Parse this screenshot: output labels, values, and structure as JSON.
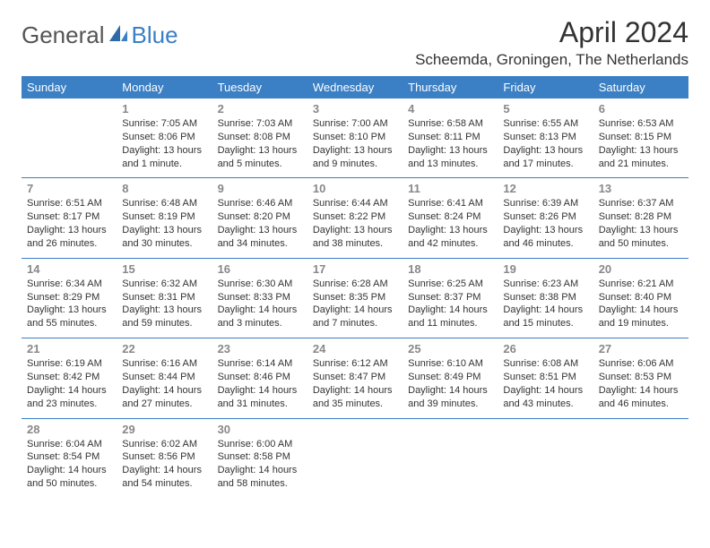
{
  "logo": {
    "text1": "General",
    "text2": "Blue"
  },
  "title": "April 2024",
  "location": "Scheemda, Groningen, The Netherlands",
  "colors": {
    "accent": "#3b7fc4",
    "text": "#333333",
    "daynum": "#888888",
    "bg": "#ffffff"
  },
  "weekdays": [
    "Sunday",
    "Monday",
    "Tuesday",
    "Wednesday",
    "Thursday",
    "Friday",
    "Saturday"
  ],
  "weeks": [
    [
      null,
      {
        "d": "1",
        "sr": "Sunrise: 7:05 AM",
        "ss": "Sunset: 8:06 PM",
        "dl1": "Daylight: 13 hours",
        "dl2": "and 1 minute."
      },
      {
        "d": "2",
        "sr": "Sunrise: 7:03 AM",
        "ss": "Sunset: 8:08 PM",
        "dl1": "Daylight: 13 hours",
        "dl2": "and 5 minutes."
      },
      {
        "d": "3",
        "sr": "Sunrise: 7:00 AM",
        "ss": "Sunset: 8:10 PM",
        "dl1": "Daylight: 13 hours",
        "dl2": "and 9 minutes."
      },
      {
        "d": "4",
        "sr": "Sunrise: 6:58 AM",
        "ss": "Sunset: 8:11 PM",
        "dl1": "Daylight: 13 hours",
        "dl2": "and 13 minutes."
      },
      {
        "d": "5",
        "sr": "Sunrise: 6:55 AM",
        "ss": "Sunset: 8:13 PM",
        "dl1": "Daylight: 13 hours",
        "dl2": "and 17 minutes."
      },
      {
        "d": "6",
        "sr": "Sunrise: 6:53 AM",
        "ss": "Sunset: 8:15 PM",
        "dl1": "Daylight: 13 hours",
        "dl2": "and 21 minutes."
      }
    ],
    [
      {
        "d": "7",
        "sr": "Sunrise: 6:51 AM",
        "ss": "Sunset: 8:17 PM",
        "dl1": "Daylight: 13 hours",
        "dl2": "and 26 minutes."
      },
      {
        "d": "8",
        "sr": "Sunrise: 6:48 AM",
        "ss": "Sunset: 8:19 PM",
        "dl1": "Daylight: 13 hours",
        "dl2": "and 30 minutes."
      },
      {
        "d": "9",
        "sr": "Sunrise: 6:46 AM",
        "ss": "Sunset: 8:20 PM",
        "dl1": "Daylight: 13 hours",
        "dl2": "and 34 minutes."
      },
      {
        "d": "10",
        "sr": "Sunrise: 6:44 AM",
        "ss": "Sunset: 8:22 PM",
        "dl1": "Daylight: 13 hours",
        "dl2": "and 38 minutes."
      },
      {
        "d": "11",
        "sr": "Sunrise: 6:41 AM",
        "ss": "Sunset: 8:24 PM",
        "dl1": "Daylight: 13 hours",
        "dl2": "and 42 minutes."
      },
      {
        "d": "12",
        "sr": "Sunrise: 6:39 AM",
        "ss": "Sunset: 8:26 PM",
        "dl1": "Daylight: 13 hours",
        "dl2": "and 46 minutes."
      },
      {
        "d": "13",
        "sr": "Sunrise: 6:37 AM",
        "ss": "Sunset: 8:28 PM",
        "dl1": "Daylight: 13 hours",
        "dl2": "and 50 minutes."
      }
    ],
    [
      {
        "d": "14",
        "sr": "Sunrise: 6:34 AM",
        "ss": "Sunset: 8:29 PM",
        "dl1": "Daylight: 13 hours",
        "dl2": "and 55 minutes."
      },
      {
        "d": "15",
        "sr": "Sunrise: 6:32 AM",
        "ss": "Sunset: 8:31 PM",
        "dl1": "Daylight: 13 hours",
        "dl2": "and 59 minutes."
      },
      {
        "d": "16",
        "sr": "Sunrise: 6:30 AM",
        "ss": "Sunset: 8:33 PM",
        "dl1": "Daylight: 14 hours",
        "dl2": "and 3 minutes."
      },
      {
        "d": "17",
        "sr": "Sunrise: 6:28 AM",
        "ss": "Sunset: 8:35 PM",
        "dl1": "Daylight: 14 hours",
        "dl2": "and 7 minutes."
      },
      {
        "d": "18",
        "sr": "Sunrise: 6:25 AM",
        "ss": "Sunset: 8:37 PM",
        "dl1": "Daylight: 14 hours",
        "dl2": "and 11 minutes."
      },
      {
        "d": "19",
        "sr": "Sunrise: 6:23 AM",
        "ss": "Sunset: 8:38 PM",
        "dl1": "Daylight: 14 hours",
        "dl2": "and 15 minutes."
      },
      {
        "d": "20",
        "sr": "Sunrise: 6:21 AM",
        "ss": "Sunset: 8:40 PM",
        "dl1": "Daylight: 14 hours",
        "dl2": "and 19 minutes."
      }
    ],
    [
      {
        "d": "21",
        "sr": "Sunrise: 6:19 AM",
        "ss": "Sunset: 8:42 PM",
        "dl1": "Daylight: 14 hours",
        "dl2": "and 23 minutes."
      },
      {
        "d": "22",
        "sr": "Sunrise: 6:16 AM",
        "ss": "Sunset: 8:44 PM",
        "dl1": "Daylight: 14 hours",
        "dl2": "and 27 minutes."
      },
      {
        "d": "23",
        "sr": "Sunrise: 6:14 AM",
        "ss": "Sunset: 8:46 PM",
        "dl1": "Daylight: 14 hours",
        "dl2": "and 31 minutes."
      },
      {
        "d": "24",
        "sr": "Sunrise: 6:12 AM",
        "ss": "Sunset: 8:47 PM",
        "dl1": "Daylight: 14 hours",
        "dl2": "and 35 minutes."
      },
      {
        "d": "25",
        "sr": "Sunrise: 6:10 AM",
        "ss": "Sunset: 8:49 PM",
        "dl1": "Daylight: 14 hours",
        "dl2": "and 39 minutes."
      },
      {
        "d": "26",
        "sr": "Sunrise: 6:08 AM",
        "ss": "Sunset: 8:51 PM",
        "dl1": "Daylight: 14 hours",
        "dl2": "and 43 minutes."
      },
      {
        "d": "27",
        "sr": "Sunrise: 6:06 AM",
        "ss": "Sunset: 8:53 PM",
        "dl1": "Daylight: 14 hours",
        "dl2": "and 46 minutes."
      }
    ],
    [
      {
        "d": "28",
        "sr": "Sunrise: 6:04 AM",
        "ss": "Sunset: 8:54 PM",
        "dl1": "Daylight: 14 hours",
        "dl2": "and 50 minutes."
      },
      {
        "d": "29",
        "sr": "Sunrise: 6:02 AM",
        "ss": "Sunset: 8:56 PM",
        "dl1": "Daylight: 14 hours",
        "dl2": "and 54 minutes."
      },
      {
        "d": "30",
        "sr": "Sunrise: 6:00 AM",
        "ss": "Sunset: 8:58 PM",
        "dl1": "Daylight: 14 hours",
        "dl2": "and 58 minutes."
      },
      null,
      null,
      null,
      null
    ]
  ]
}
